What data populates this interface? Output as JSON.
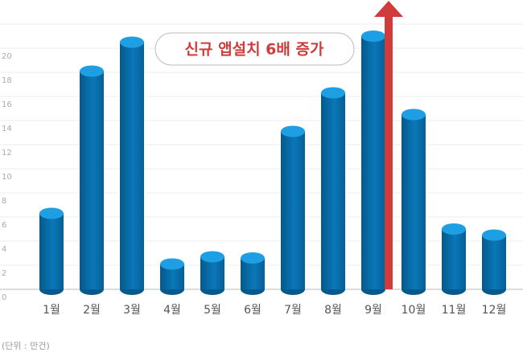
{
  "chart_data": {
    "type": "bar",
    "categories": [
      "1월",
      "2월",
      "3월",
      "4월",
      "5월",
      "6월",
      "7월",
      "8월",
      "9월",
      "10월",
      "11월",
      "12월"
    ],
    "values": [
      6.3,
      18.1,
      20.5,
      2.1,
      2.7,
      2.6,
      13.1,
      16.3,
      21,
      14.5,
      5,
      4.5
    ],
    "color": "#0a72b0",
    "ylim": [
      0,
      22
    ],
    "yticks": [
      0,
      2,
      4,
      6,
      8,
      10,
      12,
      14,
      16,
      18,
      20
    ],
    "grid": true,
    "annotation": "신규 앱설치 6배 증가",
    "arrow_color": "#d03c3c",
    "unit_note": "(단위 : 만건)"
  }
}
